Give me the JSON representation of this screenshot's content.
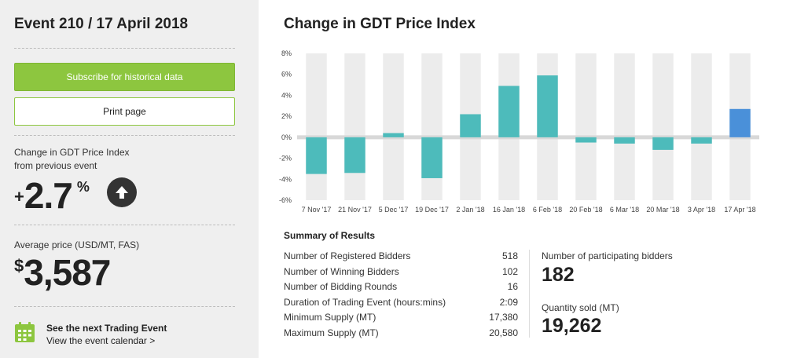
{
  "event": {
    "title": "Event 210 / 17 April 2018"
  },
  "buttons": {
    "subscribe": "Subscribe for historical data",
    "print": "Print page"
  },
  "change": {
    "label_line1": "Change in GDT Price Index",
    "label_line2": "from previous event",
    "sign": "+",
    "value": "2.7",
    "unit": "%",
    "direction_icon": "arrow-up-icon"
  },
  "price": {
    "label": "Average price (USD/MT, FAS)",
    "currency": "$",
    "value": "3,587"
  },
  "next_event": {
    "icon": "calendar-icon",
    "title": "See the next Trading Event",
    "link": "View the event calendar >"
  },
  "chart_title": "Change in GDT Price Index",
  "chart_data": {
    "type": "bar",
    "categories": [
      "7 Nov '17",
      "21 Nov '17",
      "5 Dec '17",
      "19 Dec '17",
      "2 Jan '18",
      "16 Jan '18",
      "6 Feb '18",
      "20 Feb '18",
      "6 Mar '18",
      "20 Mar '18",
      "3 Apr '18",
      "17 Apr '18"
    ],
    "values": [
      -3.5,
      -3.4,
      0.4,
      -3.9,
      2.2,
      4.9,
      5.9,
      -0.5,
      -0.6,
      -1.2,
      -0.6,
      2.7
    ],
    "ylim": [
      -6,
      8
    ],
    "yticks": [
      "-6%",
      "-4%",
      "-2%",
      "0%",
      "2%",
      "4%",
      "6%",
      "8%"
    ],
    "ytick_values": [
      -6,
      -4,
      -2,
      0,
      2,
      4,
      6,
      8
    ],
    "bar_color": "#4dbbbb",
    "highlight_color": "#4a90d9",
    "band_color": "#ececec"
  },
  "summary": {
    "title": "Summary of Results",
    "rows": [
      {
        "label": "Number of Registered Bidders",
        "value": "518"
      },
      {
        "label": "Number of Winning Bidders",
        "value": "102"
      },
      {
        "label": "Number of Bidding Rounds",
        "value": "16"
      },
      {
        "label": "Duration of Trading Event (hours:mins)",
        "value": "2:09"
      },
      {
        "label": "Minimum Supply (MT)",
        "value": "17,380"
      },
      {
        "label": "Maximum Supply (MT)",
        "value": "20,580"
      }
    ],
    "participating_label": "Number of participating bidders",
    "participating_value": "182",
    "quantity_label": "Quantity sold (MT)",
    "quantity_value": "19,262"
  },
  "colors": {
    "accent": "#8dc63f",
    "sidebar_bg": "#efefef"
  }
}
